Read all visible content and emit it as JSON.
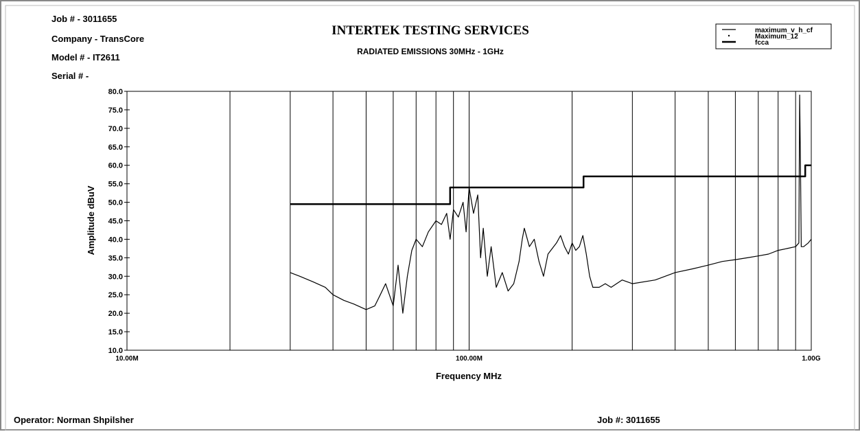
{
  "chart_data": {
    "type": "line",
    "title": "INTERTEK TESTING SERVICES",
    "subtitle": "RADIATED EMISSIONS 30MHz - 1GHz",
    "header": [
      "Job # - 3011655",
      "Company - TransCore",
      "Model # - IT2611",
      "Serial # -"
    ],
    "footer_left": "Operator: Norman Shpilsher",
    "footer_right": "Job #: 3011655",
    "x_label": "Frequency MHz",
    "y_label": "Amplitude dBuV",
    "log_x": true,
    "xlim": [
      10,
      1000
    ],
    "xticks": [
      {
        "value": 10,
        "label": "10.00M"
      },
      {
        "value": 100,
        "label": "100.00M"
      },
      {
        "value": 1000,
        "label": "1.00G"
      }
    ],
    "x_minor_ticks": [
      20,
      30,
      40,
      50,
      60,
      70,
      80,
      90,
      200,
      300,
      400,
      500,
      600,
      700,
      800,
      900
    ],
    "ylim": [
      10,
      80
    ],
    "yticks": [
      {
        "value": 10,
        "label": "10.0"
      },
      {
        "value": 15,
        "label": "15.0"
      },
      {
        "value": 20,
        "label": "20.0"
      },
      {
        "value": 25,
        "label": "25.0"
      },
      {
        "value": 30,
        "label": "30.0"
      },
      {
        "value": 35,
        "label": "35.0"
      },
      {
        "value": 40,
        "label": "40.0"
      },
      {
        "value": 45,
        "label": "45.0"
      },
      {
        "value": 50,
        "label": "50.0"
      },
      {
        "value": 55,
        "label": "55.0"
      },
      {
        "value": 60,
        "label": "60.0"
      },
      {
        "value": 65,
        "label": "65.0"
      },
      {
        "value": 70,
        "label": "70.0"
      },
      {
        "value": 75,
        "label": "75.0"
      },
      {
        "value": 80,
        "label": "80.0"
      }
    ],
    "series": [
      {
        "name": "maximum_v_h_cf",
        "color": "#000000",
        "width": 1.2,
        "x": [
          30,
          32,
          35,
          38,
          40,
          43,
          46,
          50,
          53,
          55,
          57,
          60,
          62,
          64,
          66,
          68,
          70,
          73,
          76,
          80,
          83,
          86,
          88,
          90,
          93,
          96,
          98,
          100,
          103,
          106,
          108,
          110,
          113,
          116,
          120,
          125,
          130,
          135,
          140,
          143,
          145,
          150,
          155,
          160,
          165,
          170,
          180,
          185,
          190,
          195,
          200,
          205,
          210,
          215,
          220,
          225,
          230,
          240,
          250,
          260,
          280,
          300,
          350,
          400,
          450,
          500,
          550,
          600,
          650,
          700,
          750,
          800,
          850,
          900,
          920,
          925,
          930,
          935,
          950,
          980,
          1000
        ],
        "values": [
          31,
          30,
          28.5,
          27,
          25,
          23.5,
          22.5,
          21,
          22,
          25,
          28,
          22,
          33,
          20,
          30,
          37,
          40,
          38,
          42,
          45,
          44,
          47,
          40,
          48,
          46,
          50,
          42,
          54,
          47,
          52,
          35,
          43,
          30,
          38,
          27,
          31,
          26,
          28,
          34,
          40,
          43,
          38,
          40,
          34,
          30,
          36,
          39,
          41,
          38,
          36,
          39,
          37,
          38,
          41,
          36,
          30,
          27,
          27,
          28,
          27,
          29,
          28,
          29,
          31,
          32,
          33,
          34,
          34.5,
          35,
          35.5,
          36,
          37,
          37.5,
          38,
          39,
          79,
          60,
          38,
          38,
          39,
          40
        ]
      },
      {
        "name": "Maximum_12",
        "color": "#000000",
        "width": 1,
        "x": [],
        "values": []
      },
      {
        "name": "fcca",
        "color": "#000000",
        "width": 2.5,
        "x": [
          30,
          88,
          88,
          216,
          216,
          960,
          960,
          1000
        ],
        "values": [
          49.5,
          49.5,
          54,
          54,
          57,
          57,
          60,
          60
        ]
      }
    ]
  }
}
